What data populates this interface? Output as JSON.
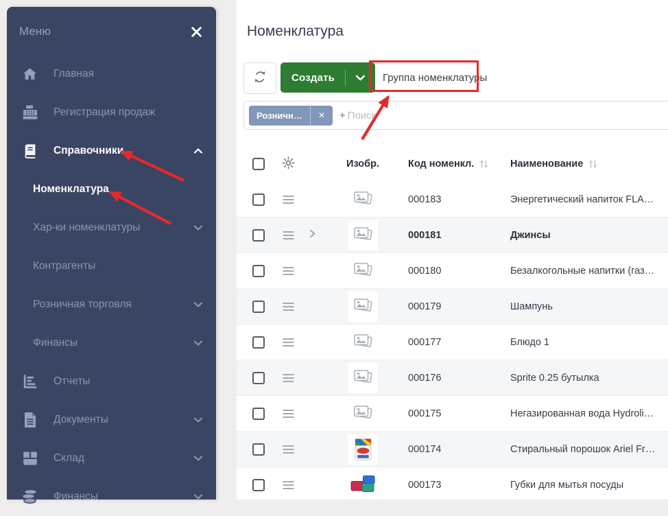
{
  "sidebar": {
    "title": "Меню",
    "items": [
      {
        "id": "home",
        "icon": "home",
        "label": "Главная"
      },
      {
        "id": "sales-registration",
        "icon": "cash-register",
        "label": "Регистрация продаж"
      },
      {
        "id": "directories",
        "icon": "book",
        "label": "Справочники",
        "active": true,
        "chevron": "up"
      },
      {
        "id": "nomenclature",
        "label": "Номенклатура",
        "sub": true,
        "active": true
      },
      {
        "id": "nomenclature-characteristics",
        "label": "Хар-ки номенклатуры",
        "sub": true,
        "chevron": "down"
      },
      {
        "id": "counterparties",
        "label": "Контрагенты",
        "sub": true
      },
      {
        "id": "retail-trade",
        "label": "Розничная торговля",
        "sub": true,
        "chevron": "down"
      },
      {
        "id": "finance-directory",
        "label": "Финансы",
        "sub": true,
        "chevron": "down"
      },
      {
        "id": "reports",
        "icon": "bar-chart",
        "label": "Отчеты"
      },
      {
        "id": "documents",
        "icon": "document",
        "label": "Документы",
        "chevron": "down"
      },
      {
        "id": "warehouse",
        "icon": "box",
        "label": "Склад",
        "chevron": "down"
      },
      {
        "id": "finance",
        "icon": "coins",
        "label": "Финансы",
        "chevron": "down"
      }
    ]
  },
  "main": {
    "title": "Номенклатура",
    "toolbar": {
      "create_label": "Создать",
      "group_label": "Группа номенклатуры"
    },
    "filter": {
      "chip_label": "Розничн…",
      "chip_close": "✕",
      "search_plus": "+",
      "search_placeholder": "Поиск"
    },
    "table": {
      "columns": {
        "image": "Изобр.",
        "code": "Код номенкл.",
        "name": "Наименование"
      },
      "rows": [
        {
          "code": "000183",
          "name": "Энергетический напиток FLA…",
          "image": "placeholder"
        },
        {
          "code": "000181",
          "name": "Джинсы",
          "image": "placeholder",
          "bold": true,
          "expandable": true
        },
        {
          "code": "000180",
          "name": "Безалкогольные напитки (газ…",
          "image": "placeholder"
        },
        {
          "code": "000179",
          "name": "Шампунь",
          "image": "placeholder"
        },
        {
          "code": "000177",
          "name": "Блюдо 1",
          "image": "placeholder"
        },
        {
          "code": "000176",
          "name": "Sprite 0.25 бутылка",
          "image": "placeholder"
        },
        {
          "code": "000175",
          "name": "Негазированная вода Hydroli…",
          "image": "placeholder"
        },
        {
          "code": "000174",
          "name": "Стиральный порошок Ariel Fr…",
          "image": "detergent"
        },
        {
          "code": "000173",
          "name": "Губки для мытья посуды",
          "image": "sponges"
        }
      ]
    }
  },
  "colors": {
    "sidebar_bg": "#3a4463",
    "accent_green": "#2e7d32",
    "chip_blue": "#8297b9",
    "annotation_red": "#e8282c",
    "row_alt_bg": "#f5f6f8"
  }
}
